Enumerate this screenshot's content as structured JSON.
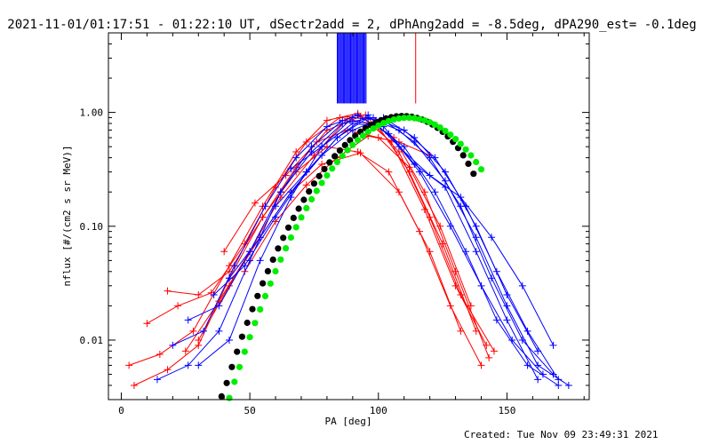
{
  "chart_data": {
    "type": "line",
    "title": "2021-11-01/01:17:51 - 01:22:10 UT, dSectr2add = 2, dPhAng2add = -8.5deg, dPA290_est= -0.1deg",
    "xlabel": "PA [deg]",
    "ylabel": "nflux [#/(cm2 s sr MeV)]",
    "xlim": [
      -5,
      182
    ],
    "ylim": [
      0.003,
      5.0
    ],
    "yscale": "log",
    "xticks": [
      0,
      50,
      100,
      150
    ],
    "xtick_labels": [
      "0",
      "50",
      "100",
      "150"
    ],
    "yticks": [
      0.01,
      0.1,
      1.0
    ],
    "ytick_labels": [
      "0.01",
      "0.10",
      "1.00"
    ],
    "grid": false,
    "legend": "none",
    "colors": {
      "red": "#ff0000",
      "blue": "#0000ff",
      "black": "#000000",
      "green": "#00ee00"
    },
    "series": [
      {
        "color": "red",
        "style": "lines+plus",
        "x": [
          3,
          15,
          28,
          42,
          55,
          68,
          80,
          92,
          105,
          118,
          130,
          142
        ],
        "y": [
          0.006,
          0.0075,
          0.012,
          0.045,
          0.15,
          0.45,
          0.85,
          0.98,
          0.55,
          0.14,
          0.03,
          0.009
        ]
      },
      {
        "color": "red",
        "style": "lines+plus",
        "x": [
          10,
          22,
          35,
          48,
          60,
          72,
          85,
          95,
          108,
          120,
          132,
          145
        ],
        "y": [
          0.014,
          0.02,
          0.026,
          0.07,
          0.22,
          0.55,
          0.9,
          0.95,
          0.45,
          0.12,
          0.025,
          0.008
        ]
      },
      {
        "color": "red",
        "style": "lines+plus",
        "x": [
          18,
          30,
          42,
          55,
          68,
          80,
          92,
          104,
          116,
          128,
          140
        ],
        "y": [
          0.027,
          0.025,
          0.04,
          0.12,
          0.3,
          0.5,
          0.45,
          0.3,
          0.09,
          0.02,
          0.006
        ]
      },
      {
        "color": "red",
        "style": "lines+plus",
        "x": [
          5,
          18,
          30,
          42,
          55,
          68,
          80,
          93,
          106,
          118,
          130,
          143
        ],
        "y": [
          0.004,
          0.0055,
          0.009,
          0.035,
          0.12,
          0.33,
          0.7,
          0.92,
          0.6,
          0.2,
          0.04,
          0.007
        ]
      },
      {
        "color": "red",
        "style": "lines+plus",
        "x": [
          25,
          38,
          50,
          62,
          75,
          88,
          100,
          112,
          125,
          138
        ],
        "y": [
          0.008,
          0.022,
          0.06,
          0.18,
          0.42,
          0.88,
          0.75,
          0.3,
          0.07,
          0.012
        ]
      },
      {
        "color": "red",
        "style": "lines+plus",
        "x": [
          48,
          60,
          72,
          84,
          96,
          108,
          120
        ],
        "y": [
          0.04,
          0.11,
          0.23,
          0.4,
          0.62,
          0.55,
          0.42
        ]
      },
      {
        "color": "red",
        "style": "lines+plus",
        "x": [
          40,
          52,
          64,
          76,
          88,
          100,
          112,
          124,
          136
        ],
        "y": [
          0.06,
          0.16,
          0.28,
          0.55,
          0.7,
          0.6,
          0.33,
          0.1,
          0.02
        ]
      },
      {
        "color": "red",
        "style": "lines+plus",
        "x": [
          30,
          42,
          54,
          66,
          78,
          93,
          108,
          120,
          132
        ],
        "y": [
          0.01,
          0.03,
          0.08,
          0.2,
          0.35,
          0.44,
          0.2,
          0.06,
          0.012
        ]
      },
      {
        "color": "blue",
        "style": "lines+plus",
        "x": [
          14,
          26,
          38,
          50,
          62,
          74,
          86,
          98,
          110,
          122,
          134,
          146,
          158,
          170
        ],
        "y": [
          0.0045,
          0.006,
          0.012,
          0.05,
          0.2,
          0.5,
          0.85,
          0.8,
          0.5,
          0.2,
          0.06,
          0.015,
          0.006,
          0.004
        ]
      },
      {
        "color": "blue",
        "style": "lines+plus",
        "x": [
          20,
          32,
          44,
          56,
          68,
          80,
          92,
          104,
          116,
          128,
          140,
          152,
          164
        ],
        "y": [
          0.009,
          0.012,
          0.045,
          0.15,
          0.4,
          0.75,
          0.95,
          0.65,
          0.3,
          0.1,
          0.03,
          0.01,
          0.005
        ]
      },
      {
        "color": "blue",
        "style": "lines+plus",
        "x": [
          26,
          38,
          50,
          62,
          74,
          86,
          98,
          110,
          122,
          134,
          146,
          158,
          170
        ],
        "y": [
          0.015,
          0.02,
          0.06,
          0.2,
          0.45,
          0.8,
          0.9,
          0.7,
          0.4,
          0.15,
          0.04,
          0.012,
          0.0045
        ]
      },
      {
        "color": "blue",
        "style": "lines+plus",
        "x": [
          30,
          42,
          54,
          66,
          78,
          90,
          102,
          114,
          126,
          138,
          150,
          162,
          174
        ],
        "y": [
          0.006,
          0.01,
          0.05,
          0.18,
          0.5,
          0.9,
          0.85,
          0.55,
          0.25,
          0.08,
          0.02,
          0.006,
          0.004
        ]
      },
      {
        "color": "blue",
        "style": "lines+plus",
        "x": [
          36,
          48,
          60,
          72,
          84,
          96,
          108,
          120,
          132,
          144,
          156,
          168
        ],
        "y": [
          0.025,
          0.045,
          0.12,
          0.3,
          0.6,
          0.9,
          0.7,
          0.4,
          0.15,
          0.035,
          0.01,
          0.005
        ]
      },
      {
        "color": "blue",
        "style": "lines+plus",
        "x": [
          42,
          54,
          66,
          78,
          90,
          102,
          114,
          126,
          138,
          150,
          162
        ],
        "y": [
          0.035,
          0.08,
          0.2,
          0.42,
          0.7,
          0.9,
          0.6,
          0.3,
          0.1,
          0.025,
          0.008
        ]
      },
      {
        "color": "blue",
        "style": "lines+plus",
        "x": [
          60,
          72,
          84,
          96,
          108,
          120,
          132,
          144,
          156,
          168
        ],
        "y": [
          0.15,
          0.3,
          0.6,
          0.95,
          0.5,
          0.28,
          0.18,
          0.08,
          0.03,
          0.009
        ]
      },
      {
        "color": "blue",
        "style": "lines+plus",
        "x": [
          66,
          78,
          90,
          102,
          114,
          126,
          138,
          150,
          162
        ],
        "y": [
          0.32,
          0.5,
          0.8,
          0.75,
          0.35,
          0.22,
          0.06,
          0.015,
          0.0045
        ]
      },
      {
        "color": "black",
        "style": "dots",
        "x": [
          39,
          41,
          43,
          45,
          47,
          49,
          51,
          53,
          55,
          57,
          59,
          61,
          63,
          65,
          67,
          69,
          71,
          73,
          75,
          77,
          79,
          81,
          83,
          85,
          87,
          89,
          91,
          93,
          95,
          97,
          99,
          101,
          103,
          105,
          107,
          109,
          111,
          113,
          115,
          117,
          119,
          121,
          123,
          125,
          127,
          129,
          131,
          133,
          135,
          137
        ],
        "y": [
          0.0032,
          0.0042,
          0.0058,
          0.0079,
          0.0107,
          0.0142,
          0.0187,
          0.0244,
          0.0315,
          0.0403,
          0.0509,
          0.0638,
          0.0791,
          0.0973,
          0.1184,
          0.1428,
          0.1706,
          0.202,
          0.2371,
          0.2758,
          0.3181,
          0.3637,
          0.4122,
          0.4632,
          0.516,
          0.5697,
          0.6235,
          0.6762,
          0.7268,
          0.7742,
          0.817,
          0.8543,
          0.885,
          0.9082,
          0.9232,
          0.9295,
          0.9268,
          0.915,
          0.8943,
          0.8651,
          0.8279,
          0.7834,
          0.7326,
          0.6764,
          0.6159,
          0.5522,
          0.4865,
          0.42,
          0.3538,
          0.2889
        ]
      },
      {
        "color": "green",
        "style": "dots",
        "x": [
          42,
          44,
          46,
          48,
          50,
          52,
          54,
          56,
          58,
          60,
          62,
          64,
          66,
          68,
          70,
          72,
          74,
          76,
          78,
          80,
          82,
          84,
          86,
          88,
          90,
          92,
          94,
          96,
          98,
          100,
          102,
          104,
          106,
          108,
          110,
          112,
          114,
          116,
          118,
          120,
          122,
          124,
          126,
          128,
          130,
          132,
          134,
          136,
          138,
          140
        ],
        "y": [
          0.0031,
          0.0043,
          0.0058,
          0.0079,
          0.0106,
          0.0141,
          0.0186,
          0.0243,
          0.0314,
          0.0402,
          0.051,
          0.064,
          0.0796,
          0.098,
          0.1195,
          0.1443,
          0.1726,
          0.2045,
          0.24,
          0.2791,
          0.3216,
          0.3673,
          0.4157,
          0.4663,
          0.5184,
          0.5711,
          0.6234,
          0.6743,
          0.7227,
          0.7672,
          0.8068,
          0.8403,
          0.8668,
          0.8854,
          0.8957,
          0.8972,
          0.8899,
          0.874,
          0.85,
          0.8186,
          0.7805,
          0.7369,
          0.6887,
          0.6371,
          0.5832,
          0.5282,
          0.4731,
          0.4189,
          0.3664,
          0.3164
        ]
      }
    ],
    "vlines": [
      {
        "color": "blue",
        "x": [
          84,
          84.4,
          84.8,
          85.2,
          85.6,
          86,
          86.4,
          86.8,
          87.2,
          87.6,
          88,
          88.4,
          88.8,
          89.2,
          89.6,
          90,
          90.4,
          90.8,
          91.2,
          91.6,
          92,
          92.4,
          92.8,
          93.2,
          93.6,
          94,
          94.4,
          94.8,
          95.2
        ],
        "y_from": 1.2,
        "y_to": 5.0
      },
      {
        "color": "red",
        "x": [
          114.5
        ],
        "y_from": 1.2,
        "y_to": 5.0
      }
    ],
    "footer": "Created: Tue Nov 09 23:49:31 2021"
  }
}
